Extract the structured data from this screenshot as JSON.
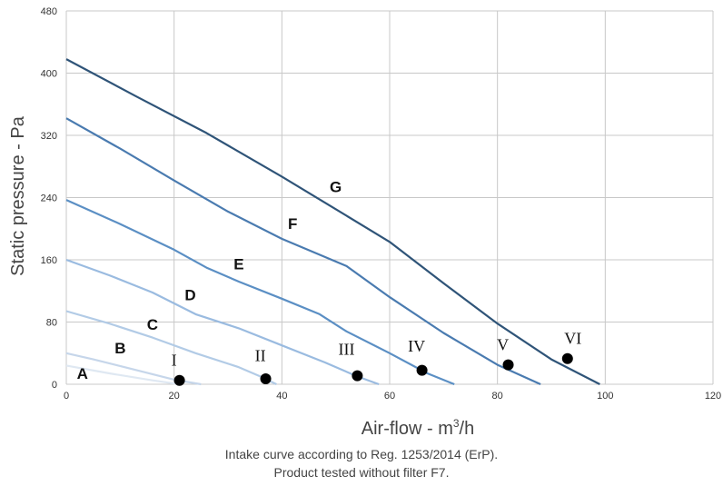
{
  "chart_data": {
    "type": "line",
    "xlabel": "Air-flow - m",
    "xlabel_sup": "3",
    "xlabel_suffix": "/h",
    "ylabel": "Static pressure - Pa",
    "xlim": [
      0,
      120
    ],
    "ylim": [
      0,
      480
    ],
    "xticks": [
      0,
      20,
      40,
      60,
      80,
      100,
      120
    ],
    "yticks": [
      0,
      80,
      160,
      240,
      320,
      400,
      480
    ],
    "grid": true,
    "series": [
      {
        "name": "A",
        "color": "#dfe8f2",
        "x": [
          0,
          8,
          16,
          21
        ],
        "y": [
          24,
          14,
          5,
          0
        ],
        "label_pos": [
          3,
          7
        ]
      },
      {
        "name": "B",
        "color": "#c6d6ea",
        "x": [
          0,
          5,
          12,
          20,
          25
        ],
        "y": [
          40,
          32,
          20,
          6,
          0
        ],
        "label_pos": [
          10,
          40
        ]
      },
      {
        "name": "C",
        "color": "#b2cbe6",
        "x": [
          0,
          8,
          16,
          24,
          32,
          36,
          39
        ],
        "y": [
          94,
          78,
          60,
          40,
          22,
          10,
          0
        ],
        "label_pos": [
          16,
          70
        ]
      },
      {
        "name": "D",
        "color": "#9abbe0",
        "x": [
          0,
          8,
          16,
          24,
          32,
          40,
          48,
          54,
          58
        ],
        "y": [
          160,
          140,
          118,
          90,
          72,
          50,
          28,
          10,
          0
        ],
        "label_pos": [
          23,
          108
        ]
      },
      {
        "name": "E",
        "color": "#5b8fc4",
        "x": [
          0,
          10,
          20,
          26,
          32,
          40,
          47,
          52,
          60,
          67,
          72
        ],
        "y": [
          237,
          206,
          173,
          150,
          132,
          110,
          90,
          68,
          40,
          14,
          0
        ],
        "label_pos": [
          32,
          148
        ]
      },
      {
        "name": "F",
        "color": "#4a7bb0",
        "x": [
          0,
          10,
          20,
          30,
          40,
          52,
          60,
          70,
          80,
          88
        ],
        "y": [
          342,
          303,
          262,
          222,
          187,
          152,
          112,
          66,
          25,
          0
        ],
        "label_pos": [
          42,
          200
        ]
      },
      {
        "name": "G",
        "color": "#2f5478",
        "x": [
          0,
          13,
          26,
          40,
          50,
          60,
          70,
          80,
          90,
          99
        ],
        "y": [
          418,
          370,
          323,
          267,
          225,
          183,
          130,
          78,
          32,
          0
        ],
        "label_pos": [
          50,
          247
        ]
      }
    ],
    "points": [
      {
        "label": "I",
        "x": 21,
        "y": 5,
        "label_pos": [
          20,
          24
        ]
      },
      {
        "label": "II",
        "x": 37,
        "y": 7,
        "label_pos": [
          36,
          30
        ]
      },
      {
        "label": "III",
        "x": 54,
        "y": 11,
        "label_pos": [
          52,
          38
        ]
      },
      {
        "label": "IV",
        "x": 66,
        "y": 18,
        "label_pos": [
          65,
          42
        ]
      },
      {
        "label": "V",
        "x": 82,
        "y": 25,
        "label_pos": [
          81,
          44
        ]
      },
      {
        "label": "VI",
        "x": 93,
        "y": 33,
        "label_pos": [
          94,
          52
        ]
      }
    ]
  },
  "notes": {
    "line1": "Intake curve according to Reg. 1253/2014 (ErP).",
    "line2": "Product tested without filter F7."
  }
}
